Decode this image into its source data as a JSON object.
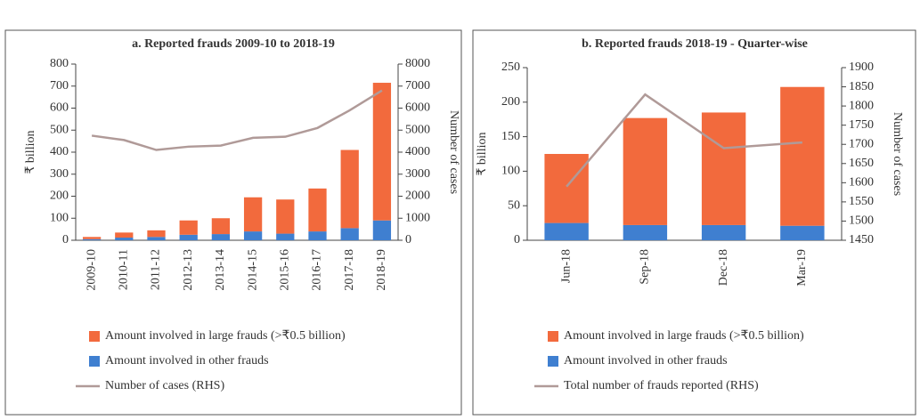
{
  "chart_data": [
    {
      "type": "bar",
      "stacked": true,
      "title": "a. Reported frauds 2009-10 to 2018-19",
      "ylabel": "₹ billion",
      "y2label": "Number of cases",
      "categories": [
        "2009-10",
        "2010-11",
        "2011-12",
        "2012-13",
        "2013-14",
        "2014-15",
        "2015-16",
        "2016-17",
        "2017-18",
        "2018-19"
      ],
      "series": [
        {
          "name": "Amount involved in large frauds (>₹0.5 billion)",
          "color": "#f26a3d",
          "values": [
            10,
            23,
            30,
            65,
            72,
            155,
            155,
            195,
            355,
            625
          ]
        },
        {
          "name": "Amount involved in other frauds",
          "color": "#3f7fd0",
          "values": [
            5,
            12,
            15,
            25,
            28,
            40,
            30,
            40,
            55,
            90
          ]
        },
        {
          "name": "Number of cases (RHS)",
          "type": "line",
          "axis": "y2",
          "color": "#b09a98",
          "values": [
            4750,
            4550,
            4100,
            4250,
            4300,
            4650,
            4700,
            5100,
            5900,
            6800
          ]
        }
      ],
      "ylim": [
        0,
        800
      ],
      "yticks": [
        0,
        100,
        200,
        300,
        400,
        500,
        600,
        700,
        800
      ],
      "y2lim": [
        0,
        8000
      ],
      "y2ticks": [
        0,
        1000,
        2000,
        3000,
        4000,
        5000,
        6000,
        7000,
        8000
      ]
    },
    {
      "type": "bar",
      "stacked": true,
      "title": "b. Reported frauds 2018-19 - Quarter-wise",
      "ylabel": "₹ billion",
      "y2label": "Number of cases",
      "categories": [
        "Jun-18",
        "Sep-18",
        "Dec-18",
        "Mar-19"
      ],
      "series": [
        {
          "name": "Amount involved in large frauds (>₹0.5 billion)",
          "color": "#f26a3d",
          "values": [
            100,
            155,
            163,
            201
          ]
        },
        {
          "name": "Amount involved in other frauds",
          "color": "#3f7fd0",
          "values": [
            25,
            22,
            22,
            21
          ]
        },
        {
          "name": "Total number of frauds reported (RHS)",
          "type": "line",
          "axis": "y2",
          "color": "#b09a98",
          "values": [
            1590,
            1830,
            1690,
            1705
          ]
        }
      ],
      "ylim": [
        0,
        250
      ],
      "yticks": [
        0,
        50,
        100,
        150,
        200,
        250
      ],
      "y2lim": [
        1450,
        1900
      ],
      "y2ticks": [
        1450,
        1500,
        1550,
        1600,
        1650,
        1700,
        1750,
        1800,
        1850,
        1900
      ]
    }
  ]
}
